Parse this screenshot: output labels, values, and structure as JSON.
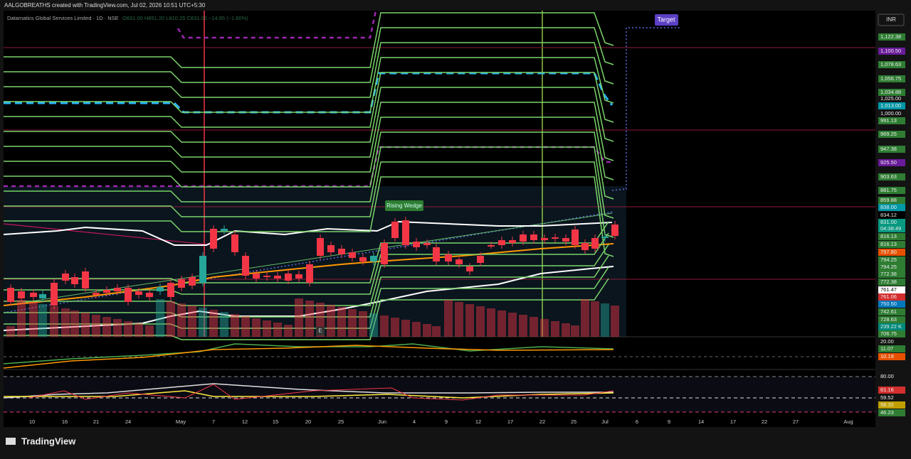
{
  "header": {
    "credit": "AALGOBREATHS created with TradingView.com, Jul 02, 2026 10:51 UTC+5:30",
    "symbol": "Datamatics Global Services Limited · 1D · NSE",
    "ohlc": "O831.00 H851.20 L810.25 C831.00 −14.85 (−1.80%)"
  },
  "currency": "INR",
  "annotations": {
    "target": "Target",
    "pattern": "Rising Wedge",
    "earnings": "E"
  },
  "price_labels": [
    "1,122.38",
    "1,100.50",
    "1,078.63",
    "1,056.75",
    "1,034.88",
    "1,025.00",
    "1,013.00",
    "1,000.00",
    "991.13",
    "969.25",
    "947.38",
    "925.50",
    "903.63",
    "881.75",
    "859.88",
    "838.00",
    "834.12",
    "831.00",
    "04:38:49",
    "816.13",
    "816.13",
    "797.80",
    "794.25",
    "794.25",
    "772.38",
    "772.38",
    "761.47",
    "761.06",
    "750.50",
    "742.61",
    "728.63",
    "239.22 K",
    "706.75",
    "20.00",
    "11.07",
    "10.19",
    "80.00",
    "61.16",
    "59.52",
    "58.32",
    "46.23"
  ],
  "date_labels": [
    "10",
    "16",
    "21",
    "24",
    "May",
    "7",
    "12",
    "15",
    "20",
    "25",
    "Jun",
    "4",
    "9",
    "12",
    "17",
    "22",
    "25",
    "Jul",
    "6",
    "9",
    "14",
    "17",
    "22",
    "27",
    "Aug"
  ],
  "footer": {
    "logo": "TradingView"
  }
}
